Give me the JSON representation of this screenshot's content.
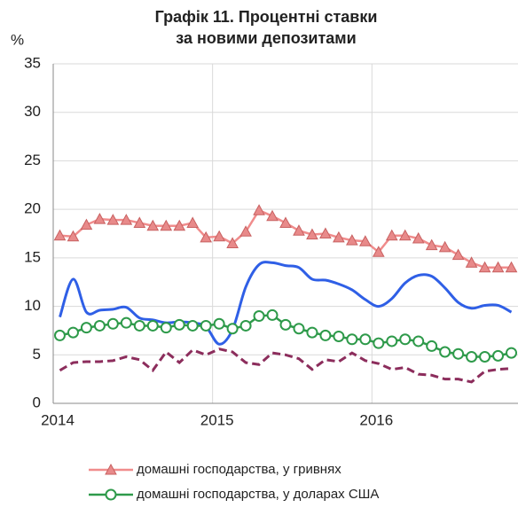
{
  "chart_data": {
    "type": "line",
    "title": [
      "Графік 11. Процентні ставки",
      "за новими депозитами"
    ],
    "y_label": "%",
    "xlim": [
      0,
      35
    ],
    "xticks": [
      {
        "value": 0,
        "label": "2014"
      },
      {
        "value": 12,
        "label": "2015"
      },
      {
        "value": 24,
        "label": "2016"
      }
    ],
    "ylim": [
      0,
      35
    ],
    "yticks": [
      0,
      5,
      10,
      15,
      20,
      25,
      30,
      35
    ],
    "grid": true,
    "x": [
      0.5,
      1.5,
      2.5,
      3.5,
      4.5,
      5.5,
      6.5,
      7.5,
      8.5,
      9.5,
      10.5,
      11.5,
      12.5,
      13.5,
      14.5,
      15.5,
      16.5,
      17.5,
      18.5,
      19.5,
      20.5,
      21.5,
      22.5,
      23.5,
      24.5,
      25.5,
      26.5,
      27.5,
      28.5,
      29.5,
      30.5,
      31.5,
      32.5,
      33.5,
      34.5
    ],
    "series": [
      {
        "color": "#2f5fe6",
        "style": "smooth",
        "values": [
          8.9,
          12.8,
          9.4,
          9.6,
          9.7,
          9.9,
          8.8,
          8.6,
          8.3,
          8.4,
          8.3,
          7.9,
          6.1,
          7.6,
          12.0,
          14.3,
          14.5,
          14.2,
          14.0,
          12.8,
          12.7,
          12.3,
          11.7,
          10.7,
          10.0,
          10.8,
          12.4,
          13.2,
          13.1,
          11.9,
          10.4,
          9.8,
          10.1,
          10.1,
          9.4
        ]
      },
      {
        "color": "#8c2d5c",
        "style": "dashed",
        "values": [
          3.4,
          4.2,
          4.3,
          4.3,
          4.4,
          4.8,
          4.5,
          3.4,
          5.3,
          4.2,
          5.5,
          5.0,
          5.6,
          5.3,
          4.2,
          4.0,
          5.2,
          5.0,
          4.6,
          3.5,
          4.5,
          4.3,
          5.2,
          4.4,
          4.1,
          3.5,
          3.7,
          3.0,
          2.9,
          2.5,
          2.5,
          2.2,
          3.3,
          3.5,
          3.6
        ]
      },
      {
        "name": "домашні господарства, у гривнях",
        "color": "#f08c8c",
        "marker": "triangle",
        "values": [
          17.3,
          17.2,
          18.4,
          19.0,
          18.9,
          18.9,
          18.6,
          18.3,
          18.3,
          18.3,
          18.6,
          17.1,
          17.2,
          16.5,
          17.7,
          19.9,
          19.3,
          18.6,
          17.8,
          17.4,
          17.5,
          17.1,
          16.8,
          16.7,
          15.6,
          17.3,
          17.3,
          17.0,
          16.3,
          16.1,
          15.3,
          14.5,
          14.0,
          14.0,
          14.0
        ]
      },
      {
        "name": "домашні господарства, у доларах США",
        "color": "#2e9a4a",
        "marker": "circle",
        "values": [
          7.0,
          7.3,
          7.8,
          8.0,
          8.2,
          8.3,
          8.0,
          8.0,
          7.8,
          8.1,
          8.0,
          8.0,
          8.2,
          7.7,
          8.0,
          9.0,
          9.1,
          8.1,
          7.7,
          7.3,
          7.0,
          6.9,
          6.6,
          6.6,
          6.2,
          6.4,
          6.6,
          6.4,
          5.9,
          5.3,
          5.1,
          4.8,
          4.8,
          4.9,
          5.2
        ]
      }
    ]
  }
}
